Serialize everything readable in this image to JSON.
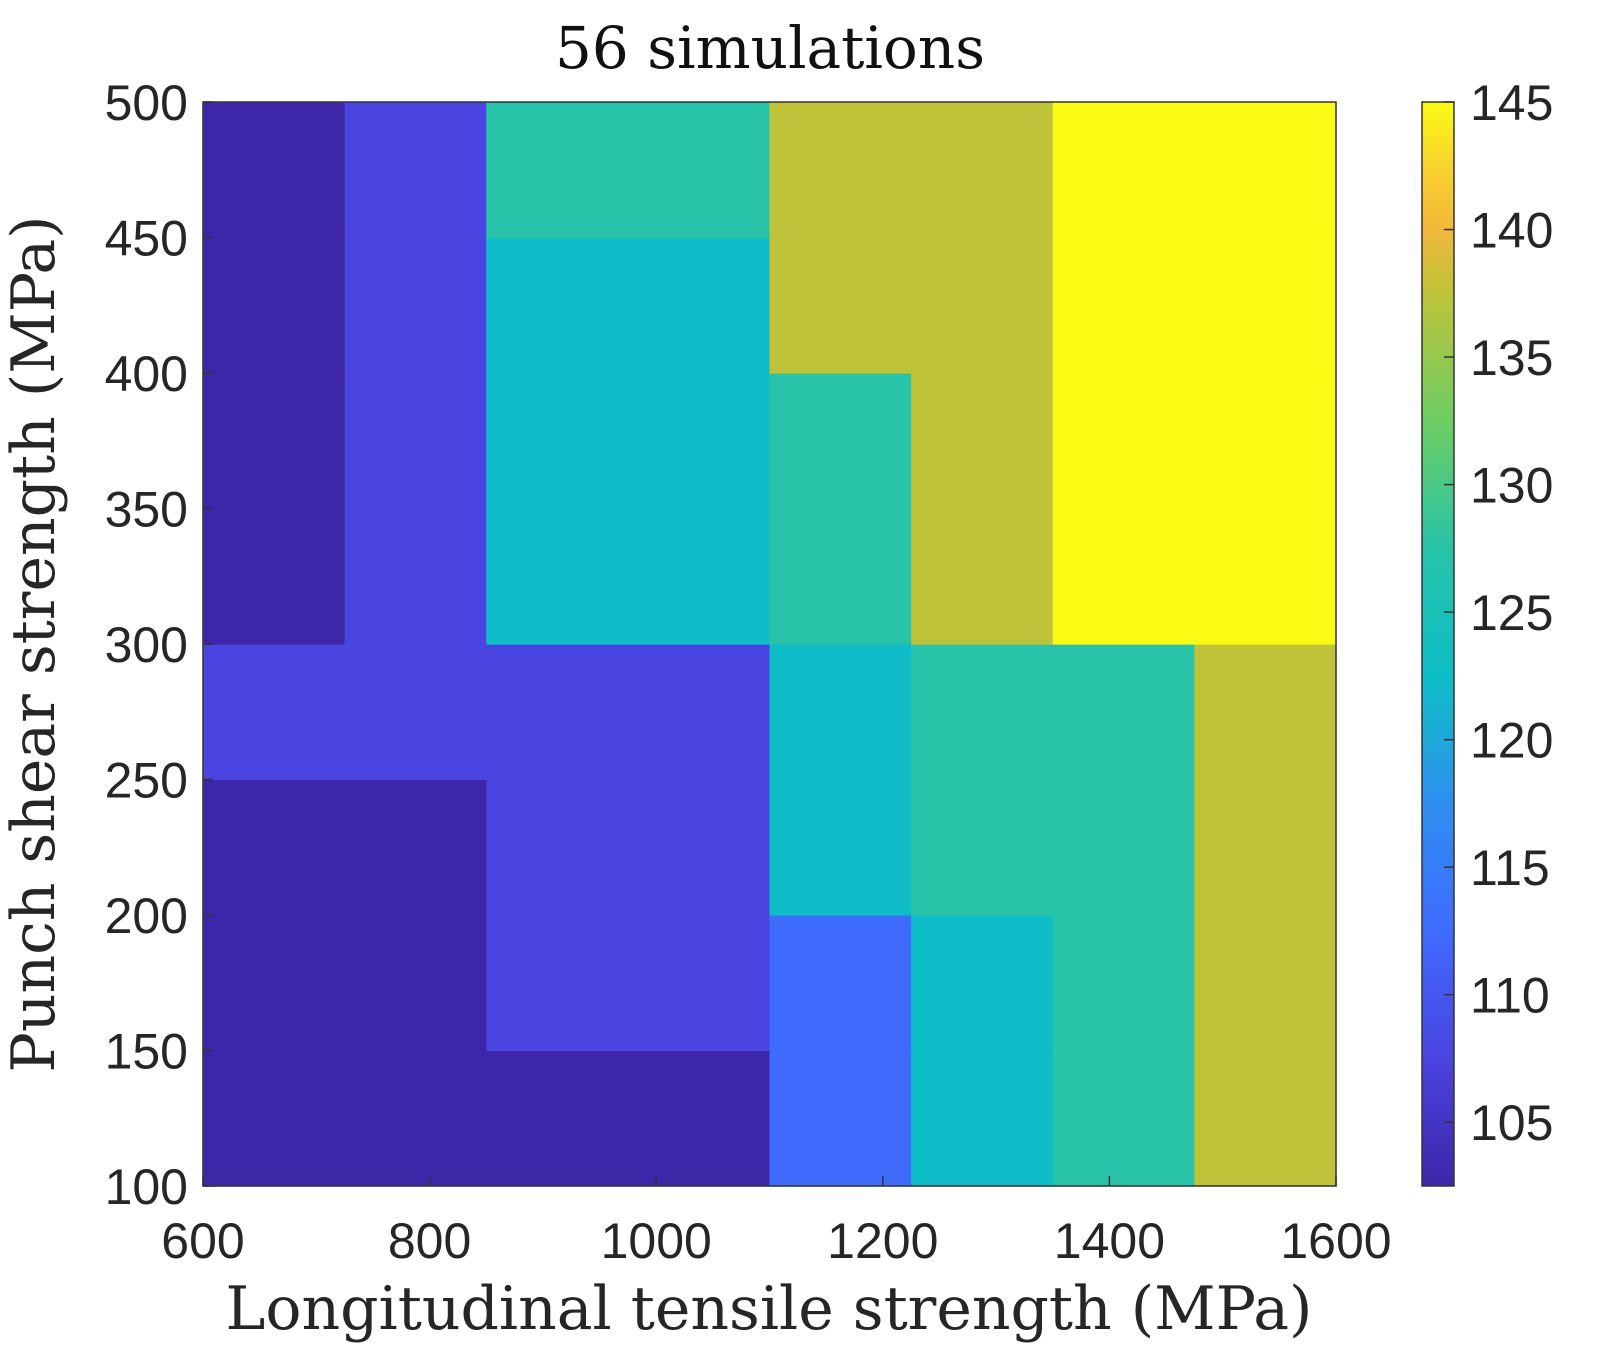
{
  "chart_data": {
    "type": "heatmap",
    "title": "56 simulations",
    "xlabel": "Longitudinal tensile strength (MPa)",
    "ylabel": "Punch shear strength (MPa)",
    "xlim": [
      600,
      1600
    ],
    "ylim": [
      100,
      500
    ],
    "xticks": [
      "600",
      "800",
      "1000",
      "1200",
      "1400",
      "1600"
    ],
    "yticks": [
      "100",
      "150",
      "200",
      "250",
      "300",
      "350",
      "400",
      "450",
      "500"
    ],
    "colorbar": {
      "range": [
        102.5,
        145
      ],
      "ticks": [
        "105",
        "110",
        "115",
        "120",
        "125",
        "130",
        "135",
        "140",
        "145"
      ]
    },
    "x_edges": [
      600,
      725,
      850,
      1100,
      1225,
      1350,
      1475,
      1600
    ],
    "y_edges": [
      100,
      150,
      200,
      250,
      300,
      400,
      450,
      500
    ],
    "grid_values": [
      [
        102.5,
        102.5,
        102.5,
        112.5,
        122.5,
        127.5,
        137.5
      ],
      [
        102.5,
        102.5,
        107.5,
        112.5,
        122.5,
        127.5,
        137.5
      ],
      [
        102.5,
        102.5,
        107.5,
        122.5,
        127.5,
        127.5,
        137.5
      ],
      [
        107.5,
        107.5,
        107.5,
        122.5,
        127.5,
        127.5,
        137.5
      ],
      [
        102.5,
        107.5,
        122.5,
        127.5,
        137.5,
        145,
        145
      ],
      [
        102.5,
        107.5,
        122.5,
        137.5,
        137.5,
        145,
        145
      ],
      [
        102.5,
        107.5,
        127.5,
        137.5,
        137.5,
        145,
        145
      ]
    ]
  }
}
